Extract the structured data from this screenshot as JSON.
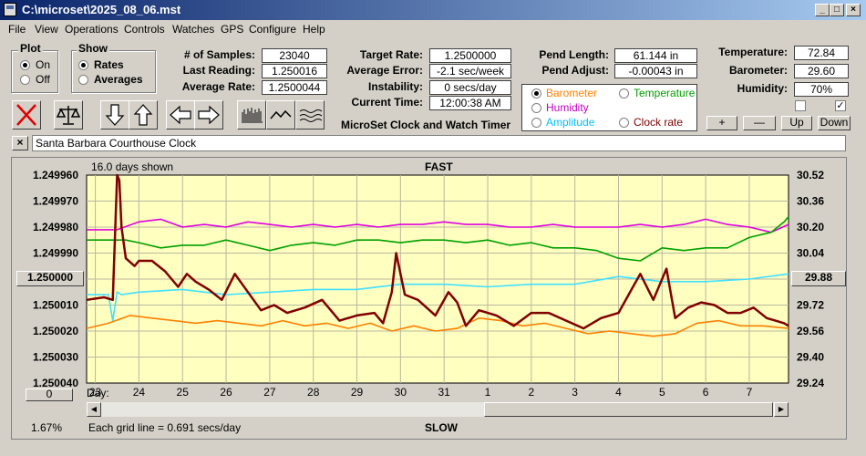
{
  "window": {
    "title": "C:\\microset\\2025_08_06.mst"
  },
  "menu": [
    "File",
    "View",
    "Operations",
    "Controls",
    "Watches",
    "GPS",
    "Configure",
    "Help"
  ],
  "plot_group": {
    "title": "Plot",
    "on_label": "On",
    "off_label": "Off",
    "selected": "On"
  },
  "show_group": {
    "title": "Show",
    "rates_label": "Rates",
    "averages_label": "Averages",
    "selected": "Rates"
  },
  "stats": {
    "samples_label": "# of Samples:",
    "samples": "23040",
    "last_reading_label": "Last Reading:",
    "last_reading": "1.250016",
    "average_rate_label": "Average Rate:",
    "average_rate": "1.2500044",
    "target_rate_label": "Target Rate:",
    "target_rate": "1.2500000",
    "average_error_label": "Average Error:",
    "average_error": "-2.1 sec/week",
    "instability_label": "Instability:",
    "instability": "0 secs/day",
    "current_time_label": "Current Time:",
    "current_time": "12:00:38 AM",
    "pend_length_label": "Pend Length:",
    "pend_length": "61.144 in",
    "pend_adjust_label": "Pend Adjust:",
    "pend_adjust": "-0.00043 in"
  },
  "environment": {
    "temperature_label": "Temperature:",
    "temperature": "72.84",
    "barometer_label": "Barometer:",
    "barometer": "29.60",
    "humidity_label": "Humidity:",
    "humidity": "70%"
  },
  "app_caption": "MicroSet Clock and Watch Timer",
  "aux_options": [
    {
      "label": "Barometer",
      "color": "#ff8000",
      "selected": true
    },
    {
      "label": "Temperature",
      "color": "#00a000",
      "selected": false
    },
    {
      "label": "Humidity",
      "color": "#c000c0",
      "selected": false
    },
    {
      "label": "Clock rate",
      "color": "#800000",
      "selected": false
    },
    {
      "label": "Amplitude",
      "color": "#00c0ff",
      "selected": false
    }
  ],
  "aux_buttons": {
    "plus": "+",
    "minus": "—",
    "up": "Up",
    "down": "Down"
  },
  "checkboxes": [
    {
      "checked": false
    },
    {
      "checked": true
    }
  ],
  "toolbar_icons": [
    "close-x-icon",
    "balance-scale-icon",
    "arrow-down-icon",
    "arrow-up-icon",
    "arrow-left-icon",
    "arrow-right-icon",
    "bars-icon",
    "wave-icon",
    "multi-wave-icon"
  ],
  "clock_name": "Santa Barbara Courthouse Clock",
  "clear_button": "×",
  "chart": {
    "days_shown": "16.0 days shown",
    "top_label": "FAST",
    "bottom_label": "SLOW",
    "center_button": "1.250000",
    "right_button": "29.88",
    "zero_button": "0",
    "percent": "1.67%",
    "grid_note": "Each grid line = 0.691 secs/day",
    "day_label": "Day:"
  },
  "chart_data": {
    "type": "line",
    "background": "#ffffc0",
    "grid": true,
    "left_axis": {
      "ticks": [
        "1.249960",
        "1.249970",
        "1.249980",
        "1.249990",
        "1.250000",
        "1.250010",
        "1.250020",
        "1.250030",
        "1.250040"
      ],
      "range": [
        1.24996,
        1.25004
      ],
      "inverted": true
    },
    "right_axis": {
      "ticks": [
        "30.52",
        "30.36",
        "30.20",
        "30.04",
        "29.88",
        "29.72",
        "29.56",
        "29.40",
        "29.24"
      ],
      "range": [
        29.24,
        30.52
      ]
    },
    "x_axis": {
      "ticks": [
        "23",
        "24",
        "25",
        "26",
        "27",
        "28",
        "29",
        "30",
        "31",
        "1",
        "2",
        "3",
        "4",
        "5",
        "6",
        "7"
      ],
      "range": [
        22.8,
        38.9
      ]
    },
    "series": [
      {
        "key": "humidity",
        "color": "#e000e0",
        "axis": "left",
        "x": [
          22.8,
          23.5,
          24.0,
          24.5,
          25.0,
          25.5,
          26.0,
          26.5,
          27.0,
          27.5,
          28.0,
          28.5,
          29.0,
          29.5,
          30.0,
          30.5,
          31.0,
          31.5,
          32.0,
          32.5,
          33.0,
          33.5,
          34.0,
          34.5,
          35.0,
          35.5,
          36.0,
          36.5,
          37.0,
          37.5,
          38.0,
          38.5,
          38.9
        ],
        "y": [
          1.249981,
          1.249981,
          1.249978,
          1.249977,
          1.24998,
          1.249979,
          1.24998,
          1.249978,
          1.249979,
          1.24998,
          1.249979,
          1.24998,
          1.249979,
          1.24998,
          1.249979,
          1.249979,
          1.249978,
          1.249979,
          1.249979,
          1.24998,
          1.24998,
          1.249979,
          1.24998,
          1.24998,
          1.24998,
          1.249979,
          1.24998,
          1.249979,
          1.249977,
          1.249979,
          1.24998,
          1.249982,
          1.249979
        ]
      },
      {
        "key": "temperature",
        "color": "#00a000",
        "axis": "left",
        "x": [
          22.8,
          23.3,
          23.7,
          24.0,
          24.5,
          25.0,
          25.5,
          26.0,
          26.5,
          27.0,
          27.5,
          28.0,
          28.5,
          29.0,
          29.5,
          30.0,
          30.5,
          31.0,
          31.5,
          32.0,
          32.5,
          33.0,
          33.5,
          34.0,
          34.5,
          35.0,
          35.5,
          36.0,
          36.5,
          37.0,
          37.5,
          38.0,
          38.5,
          38.8,
          38.9
        ],
        "y": [
          1.249985,
          1.249985,
          1.249985,
          1.249986,
          1.249988,
          1.249987,
          1.249987,
          1.249985,
          1.249987,
          1.249989,
          1.249987,
          1.249986,
          1.249987,
          1.249985,
          1.249985,
          1.249986,
          1.249985,
          1.249985,
          1.249986,
          1.249985,
          1.249987,
          1.249986,
          1.249988,
          1.249988,
          1.249989,
          1.249992,
          1.249993,
          1.249988,
          1.249989,
          1.249988,
          1.249988,
          1.249984,
          1.249982,
          1.249978,
          1.249976
        ]
      },
      {
        "key": "amplitude",
        "color": "#40e0ff",
        "axis": "left",
        "x": [
          22.8,
          23.3,
          23.4,
          23.5,
          23.6,
          24.0,
          25.0,
          26.0,
          27.0,
          28.0,
          29.0,
          30.0,
          31.0,
          32.0,
          33.0,
          34.0,
          35.0,
          36.0,
          37.0,
          38.0,
          38.9
        ],
        "y": [
          1.250006,
          1.250006,
          1.250016,
          1.250005,
          1.250006,
          1.250005,
          1.250004,
          1.250006,
          1.250005,
          1.250004,
          1.250004,
          1.250002,
          1.250002,
          1.250003,
          1.250002,
          1.250002,
          1.249999,
          1.250001,
          1.250001,
          1.25,
          1.249998
        ]
      },
      {
        "key": "barometer",
        "color": "#ff8000",
        "axis": "left",
        "x": [
          22.8,
          23.3,
          23.8,
          24.3,
          24.8,
          25.3,
          25.8,
          26.3,
          26.8,
          27.3,
          27.8,
          28.3,
          28.8,
          29.3,
          29.8,
          30.3,
          30.8,
          31.3,
          31.8,
          32.3,
          32.8,
          33.3,
          33.8,
          34.3,
          34.8,
          35.3,
          35.8,
          36.3,
          36.8,
          37.3,
          37.8,
          38.3,
          38.9
        ],
        "y": [
          1.250019,
          1.250017,
          1.250014,
          1.250015,
          1.250016,
          1.250017,
          1.250016,
          1.250017,
          1.250018,
          1.250016,
          1.250018,
          1.250017,
          1.250019,
          1.250017,
          1.25002,
          1.250018,
          1.25002,
          1.250019,
          1.250015,
          1.250016,
          1.250018,
          1.250017,
          1.250019,
          1.250021,
          1.25002,
          1.250021,
          1.250022,
          1.250021,
          1.250017,
          1.250016,
          1.250018,
          1.250018,
          1.250019
        ]
      },
      {
        "key": "clock_rate",
        "color": "#800000",
        "axis": "left",
        "x": [
          22.8,
          23.2,
          23.4,
          23.5,
          23.55,
          23.6,
          23.7,
          23.9,
          24.0,
          24.3,
          24.6,
          24.9,
          25.1,
          25.3,
          25.6,
          25.9,
          26.2,
          26.5,
          26.8,
          27.1,
          27.4,
          27.8,
          28.2,
          28.6,
          29.0,
          29.4,
          29.6,
          29.8,
          29.9,
          30.1,
          30.4,
          30.8,
          31.1,
          31.3,
          31.5,
          31.8,
          32.2,
          32.6,
          33.0,
          33.4,
          33.8,
          34.2,
          34.6,
          35.0,
          35.3,
          35.5,
          35.8,
          36.1,
          36.3,
          36.6,
          36.9,
          37.2,
          37.5,
          37.8,
          38.1,
          38.4,
          38.6,
          38.8,
          38.9
        ],
        "y": [
          1.250008,
          1.250007,
          1.250008,
          1.24996,
          1.249962,
          1.24998,
          1.249992,
          1.249995,
          1.249993,
          1.249993,
          1.249997,
          1.250003,
          1.249998,
          1.250001,
          1.250004,
          1.250008,
          1.249998,
          1.250005,
          1.250012,
          1.25001,
          1.250013,
          1.250011,
          1.250008,
          1.250016,
          1.250014,
          1.250013,
          1.250017,
          1.250005,
          1.24999,
          1.250006,
          1.250008,
          1.250014,
          1.250005,
          1.250009,
          1.250018,
          1.250012,
          1.250014,
          1.250018,
          1.250013,
          1.250013,
          1.250016,
          1.250019,
          1.250015,
          1.250013,
          1.250004,
          1.249998,
          1.250008,
          1.249996,
          1.250015,
          1.250011,
          1.250009,
          1.25001,
          1.250013,
          1.250013,
          1.250011,
          1.250015,
          1.250016,
          1.250017,
          1.250018
        ]
      }
    ]
  }
}
